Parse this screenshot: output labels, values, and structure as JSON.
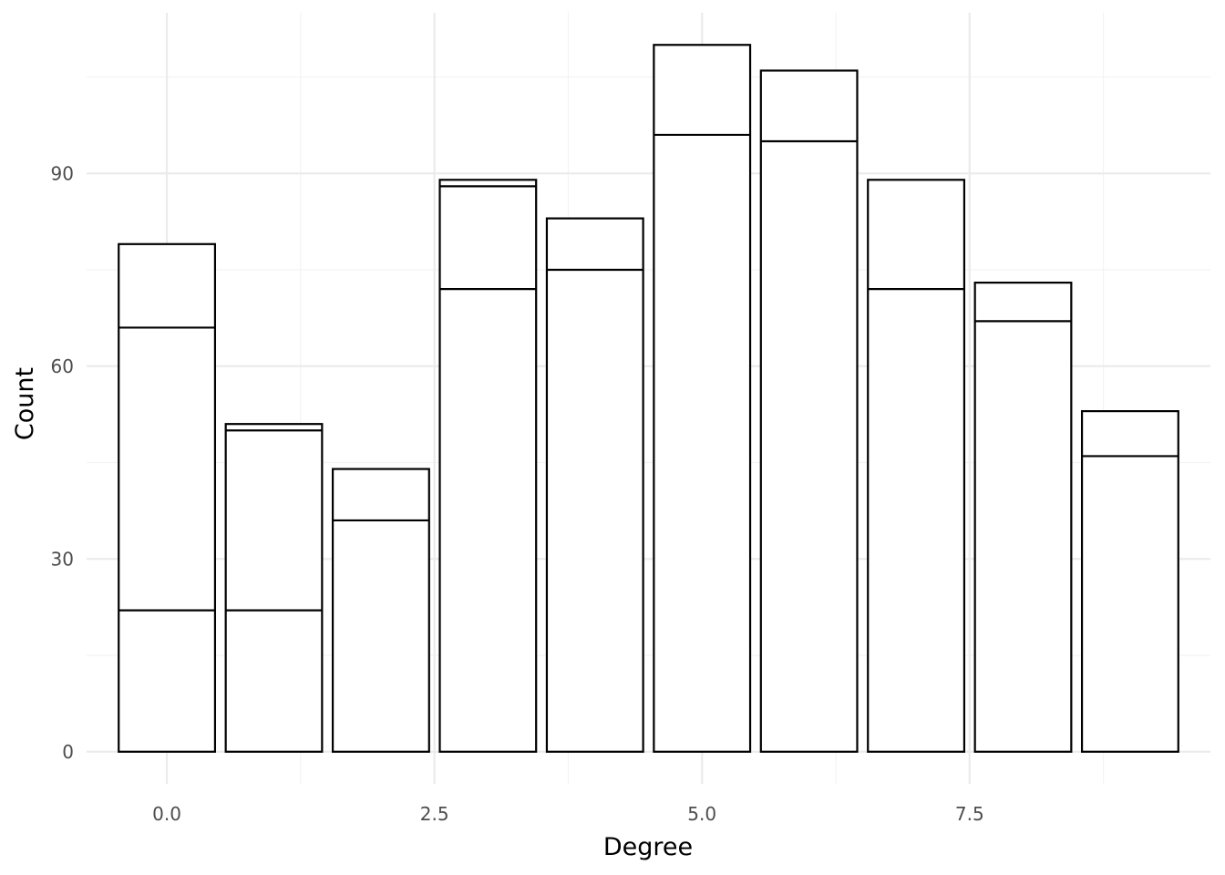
{
  "chart_data": {
    "type": "bar",
    "stacked": true,
    "title": "",
    "xlabel": "Degree",
    "ylabel": "Count",
    "x": [
      0,
      1,
      2,
      3,
      4,
      5,
      6,
      7,
      8,
      9
    ],
    "totals": [
      79,
      51,
      44,
      89,
      83,
      110,
      106,
      89,
      73,
      53
    ],
    "segment_boundaries": [
      [
        22,
        66,
        79
      ],
      [
        22,
        50,
        51
      ],
      [
        36,
        44
      ],
      [
        72,
        88,
        89
      ],
      [
        75,
        83
      ],
      [
        96,
        110
      ],
      [
        95,
        106
      ],
      [
        72,
        89
      ],
      [
        67,
        73
      ],
      [
        46,
        53
      ]
    ],
    "xlim": [
      -0.75,
      9.75
    ],
    "ylim": [
      -5,
      115
    ],
    "x_ticks": [
      0.0,
      2.5,
      5.0,
      7.5
    ],
    "x_tick_labels": [
      "0.0",
      "2.5",
      "5.0",
      "7.5"
    ],
    "y_ticks": [
      0,
      30,
      60,
      90
    ],
    "y_tick_labels": [
      "0",
      "30",
      "60",
      "90"
    ],
    "grid": true,
    "legend": "none",
    "colors": {
      "bar_fill": "#ffffff",
      "bar_outline": "#000000",
      "grid": "#ebebeb",
      "tick_text": "#4d4d4d"
    }
  }
}
